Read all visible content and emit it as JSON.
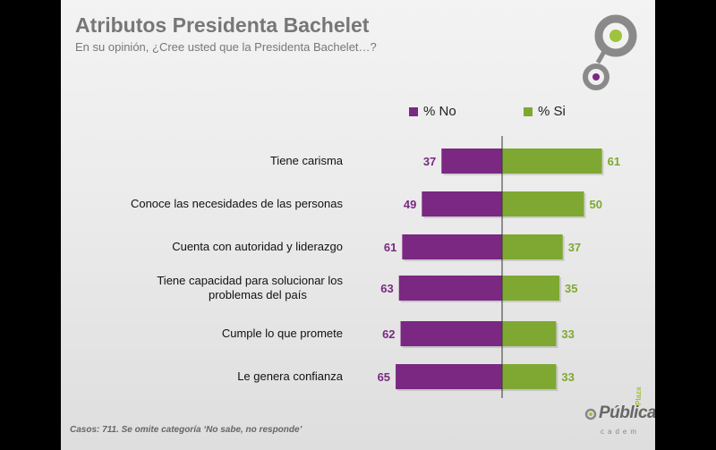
{
  "slide": {
    "title": "Atributos Presidenta Bachelet",
    "subtitle": "En su opinión, ¿Cree usted que la Presidenta Bachelet…?",
    "footnote": "Casos: 711. Se omite categoría ‘No sabe, no responde’"
  },
  "brand": {
    "name": "Pública",
    "small": "Plaza",
    "tagline": "cadem"
  },
  "colors": {
    "no": "#7a2882",
    "si": "#7fa832",
    "logo_ring": "#8a8a8a",
    "logo_green": "#9ec33c",
    "logo_purple": "#7a2882"
  },
  "chart_data": {
    "type": "bar",
    "orientation": "horizontal-diverging",
    "categories": [
      "Tiene carisma",
      "Conoce las necesidades de las personas",
      "Cuenta con autoridad y liderazgo",
      "Tiene capacidad para solucionar los problemas del país",
      "Cumple lo que promete",
      "Le genera confianza"
    ],
    "series": [
      {
        "name": "% No",
        "values": [
          37,
          49,
          61,
          63,
          62,
          65
        ]
      },
      {
        "name": "% Si",
        "values": [
          61,
          50,
          37,
          35,
          33,
          33
        ]
      }
    ],
    "legend": "top",
    "grid": false
  }
}
